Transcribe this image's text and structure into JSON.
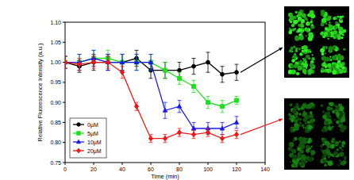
{
  "chart_data": {
    "type": "line",
    "x_label": "Time (min)",
    "y_label": "Relative Fluorescence Intensity (a.u.)",
    "x": [
      0,
      10,
      20,
      30,
      40,
      50,
      60,
      70,
      80,
      90,
      100,
      110,
      120
    ],
    "series": [
      {
        "name": "0µM",
        "color": "#000000",
        "marker": "circle",
        "values": [
          1.0,
          0.99,
          1.0,
          1.0,
          1.0,
          1.01,
          0.98,
          0.98,
          0.98,
          0.99,
          1.0,
          0.97,
          0.975
        ],
        "errors": [
          0.015,
          0.015,
          0.02,
          0.02,
          0.02,
          0.02,
          0.02,
          0.02,
          0.02,
          0.02,
          0.025,
          0.02,
          0.02
        ]
      },
      {
        "name": "5µM",
        "color": "#22dd22",
        "marker": "square",
        "values": [
          1.0,
          1.0,
          1.01,
          1.01,
          1.0,
          1.0,
          1.0,
          0.98,
          0.96,
          0.94,
          0.9,
          0.89,
          0.905
        ],
        "errors": [
          0.015,
          0.02,
          0.02,
          0.02,
          0.02,
          0.02,
          0.02,
          0.02,
          0.015,
          0.015,
          0.015,
          0.015,
          0.01
        ]
      },
      {
        "name": "10µM",
        "color": "#1a1ae6",
        "marker": "triangle",
        "values": [
          1.0,
          1.0,
          1.01,
          1.0,
          1.0,
          1.0,
          1.0,
          0.88,
          0.89,
          0.835,
          0.835,
          0.835,
          0.85
        ],
        "errors": [
          0.015,
          0.02,
          0.02,
          0.02,
          0.02,
          0.02,
          0.02,
          0.02,
          0.015,
          0.015,
          0.015,
          0.015,
          0.015
        ]
      },
      {
        "name": "20µM",
        "color": "#e61a1a",
        "marker": "diamond",
        "values": [
          1.0,
          0.995,
          1.0,
          1.0,
          0.975,
          0.89,
          0.81,
          0.81,
          0.825,
          0.82,
          0.825,
          0.81,
          0.82
        ],
        "errors": [
          0.015,
          0.015,
          0.015,
          0.015,
          0.015,
          0.01,
          0.01,
          0.01,
          0.01,
          0.01,
          0.01,
          0.01,
          0.01
        ]
      }
    ],
    "xlim": [
      0,
      140
    ],
    "xticks": [
      0,
      20,
      40,
      60,
      80,
      100,
      120,
      140
    ],
    "ylim": [
      0.75,
      1.1
    ],
    "yticks": [
      0.75,
      {
        "value": 0.8,
        "label": "0.80"
      },
      0.85,
      {
        "value": 0.9,
        "label": "0.90"
      },
      0.95,
      {
        "value": 1,
        "label": "1.00"
      },
      1.05,
      {
        "value": 1.1,
        "label": "1.10"
      }
    ],
    "legend": "lower left",
    "grid": false
  }
}
